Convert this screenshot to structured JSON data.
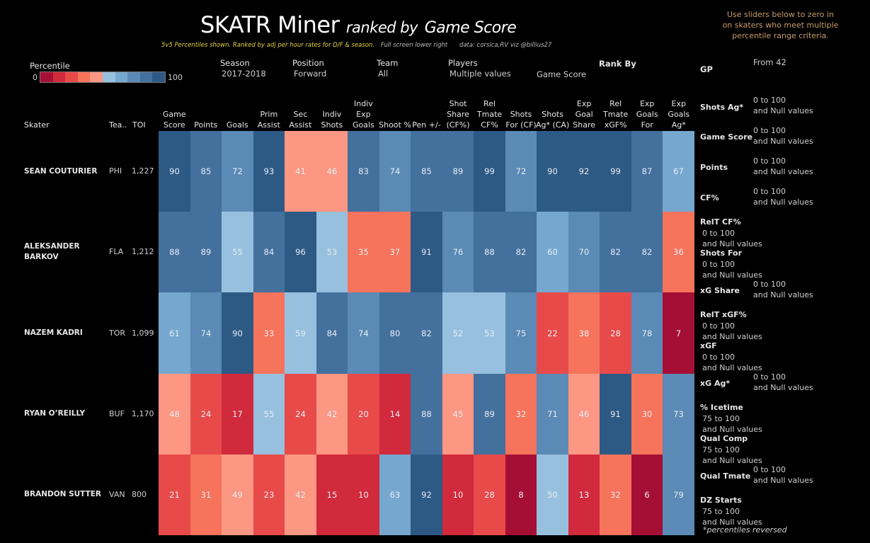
{
  "header": {
    "title_main": "SKATR Miner",
    "title_ranked": "ranked by",
    "title_metric": "Game Score",
    "subtitle_yellow": "5v5 Percentiles shown. Ranked by adj per hour rates for D/F & season.",
    "subtitle_fullscreen": "Full screen lower right",
    "subtitle_credits": "data: corsica,RV  viz @billius27",
    "hint": "Use sliders below to zero in on skaters who meet multiple percentile range criteria."
  },
  "legend": {
    "title": "Percentile",
    "min_label": "0",
    "max_label": "100",
    "colors": [
      "#a50f35",
      "#d02a3c",
      "#e84a4a",
      "#f6735c",
      "#fb9783",
      "#97c0de",
      "#76a7cf",
      "#5a8ab5",
      "#44709d",
      "#2d5985"
    ]
  },
  "filters": {
    "season": {
      "label": "Season",
      "value": "2017-2018"
    },
    "position": {
      "label": "Position",
      "value": "Forward"
    },
    "team": {
      "label": "Team",
      "value": "All"
    },
    "players": {
      "label": "Players",
      "value": "Multiple values"
    },
    "rank_by": {
      "label": "Rank By",
      "value": "Game Score"
    },
    "gp": {
      "label": "GP",
      "value": "From 42"
    }
  },
  "sliders": [
    {
      "label": "Shots Ag*",
      "range": "0 to 100",
      "nulls": "and Null values"
    },
    {
      "label": "Game Score",
      "range": "0 to 100",
      "nulls": "and Null values"
    },
    {
      "label": "Points",
      "range": "0 to 100",
      "nulls": "and Null values"
    },
    {
      "label": "CF%",
      "range": "0 to 100",
      "nulls": "and Null values"
    },
    {
      "label": "RelT CF%",
      "range": "0 to 100",
      "nulls": "and Null values"
    },
    {
      "label": "Shots For",
      "range": "0 to 100",
      "nulls": "and Null values"
    },
    {
      "label": "xG Share",
      "range": "0 to 100",
      "nulls": "and Null values"
    },
    {
      "label": "RelT xGF%",
      "range": "0 to 100",
      "nulls": "and Null values"
    },
    {
      "label": "xGF",
      "range": "0 to 100",
      "nulls": "and Null values"
    },
    {
      "label": "xG Ag*",
      "range": "0 to 100",
      "nulls": "and Null values"
    },
    {
      "label": "% Icetime",
      "range": "75 to 100",
      "nulls": "and Null values"
    },
    {
      "label": "Qual Comp",
      "range": "75 to 100",
      "nulls": "and Null values"
    },
    {
      "label": "Qual Tmate",
      "range": "0 to 100",
      "nulls": "and Null values"
    },
    {
      "label": "DZ Starts",
      "range": "75 to 100",
      "nulls": "and Null values"
    }
  ],
  "footnote": "*percentiles reversed",
  "table": {
    "skater_header": "Skater",
    "team_header": "Tea..",
    "toi_header": "TOI"
  },
  "chart_data": {
    "type": "heatmap",
    "title": "SKATR Miner ranked by Game Score",
    "value_range": [
      0,
      100
    ],
    "color_buckets": 10,
    "columns": [
      [
        "Game",
        "Score"
      ],
      [
        "Points"
      ],
      [
        "Goals"
      ],
      [
        "Prim",
        "Assist"
      ],
      [
        "Sec",
        "Assist"
      ],
      [
        "Indiv",
        "Shots"
      ],
      [
        "Indiv",
        "Exp",
        "Goals"
      ],
      [
        "Shoot %"
      ],
      [
        "Pen +/-"
      ],
      [
        "Shot",
        "Share",
        "(CF%)"
      ],
      [
        "Rel",
        "Tmate",
        "CF%"
      ],
      [
        "Shots",
        "For (CF)"
      ],
      [
        "Shots",
        "Ag* (CA)"
      ],
      [
        "Exp",
        "Goal",
        "Share"
      ],
      [
        "Rel",
        "Tmate",
        "xGF%"
      ],
      [
        "Exp",
        "Goals",
        "For"
      ],
      [
        "Exp",
        "Goals",
        "Ag*"
      ]
    ],
    "rows": [
      {
        "skater": [
          "SEAN COUTURIER"
        ],
        "team": "PHI",
        "toi": "1,227",
        "values": [
          90,
          85,
          72,
          93,
          41,
          46,
          83,
          74,
          85,
          89,
          99,
          72,
          90,
          92,
          99,
          87,
          67
        ]
      },
      {
        "skater": [
          "ALEKSANDER",
          "BARKOV"
        ],
        "team": "FLA",
        "toi": "1,212",
        "values": [
          88,
          89,
          55,
          84,
          96,
          53,
          35,
          37,
          91,
          76,
          88,
          82,
          60,
          70,
          82,
          82,
          36
        ]
      },
      {
        "skater": [
          "NAZEM KADRI"
        ],
        "team": "TOR",
        "toi": "1,099",
        "values": [
          61,
          74,
          90,
          33,
          59,
          84,
          74,
          80,
          82,
          52,
          53,
          75,
          22,
          38,
          28,
          78,
          7
        ]
      },
      {
        "skater": [
          "RYAN O’REILLY"
        ],
        "team": "BUF",
        "toi": "1,170",
        "values": [
          48,
          24,
          17,
          55,
          24,
          42,
          20,
          14,
          88,
          45,
          89,
          32,
          71,
          46,
          91,
          30,
          73
        ]
      },
      {
        "skater": [
          "BRANDON SUTTER"
        ],
        "team": "VAN",
        "toi": "800",
        "values": [
          21,
          31,
          49,
          23,
          42,
          15,
          10,
          63,
          92,
          10,
          28,
          8,
          50,
          13,
          32,
          6,
          79
        ]
      }
    ]
  }
}
